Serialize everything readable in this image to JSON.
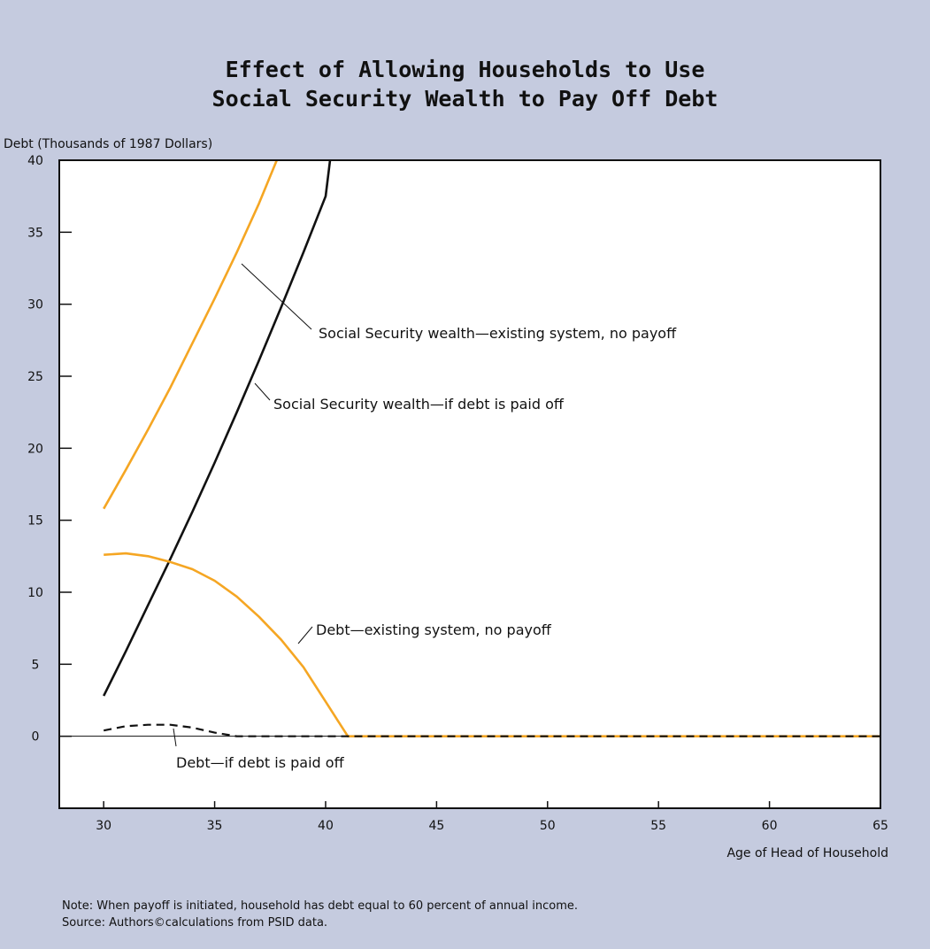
{
  "title_lines": [
    "Effect of Allowing Households to Use",
    "Social Security Wealth to Pay Off Debt"
  ],
  "notes": {
    "note": "Note: When payoff is initiated, household has debt equal to 60 percent of annual income.",
    "source": "Source: Authors©calculations from PSID data."
  },
  "colors": {
    "background": "#c5cbdf",
    "plot_area": "#ffffff",
    "orange": "#f5a623",
    "black": "#111111"
  },
  "chart_data": {
    "type": "line",
    "title": "Effect of Allowing Households to Use Social Security Wealth to Pay Off Debt",
    "ylabel": "Debt (Thousands of 1987 Dollars)",
    "xlabel": "Age of Head of Household",
    "xlim": [
      28,
      65
    ],
    "ylim": [
      -5,
      40
    ],
    "xticks": [
      30,
      35,
      40,
      45,
      50,
      55,
      60,
      65
    ],
    "yticks": [
      0,
      5,
      10,
      15,
      20,
      25,
      30,
      35,
      40
    ],
    "grid": false,
    "series": [
      {
        "name": "Social Security wealth—existing system, no payoff",
        "color": "#f5a623",
        "style": "solid",
        "x": [
          30,
          31,
          32,
          33,
          34,
          35,
          36,
          37,
          37.8
        ],
        "y": [
          15.8,
          18.5,
          21.3,
          24.2,
          27.3,
          30.4,
          33.6,
          37.0,
          40
        ]
      },
      {
        "name": "Social Security wealth—if debt is paid off",
        "color": "#111111",
        "style": "solid",
        "x": [
          30,
          31,
          32,
          33,
          34,
          35,
          36,
          37,
          38,
          39,
          40,
          40.2
        ],
        "y": [
          2.8,
          5.9,
          9.1,
          12.3,
          15.6,
          19.0,
          22.5,
          26.1,
          29.8,
          33.6,
          37.5,
          40
        ]
      },
      {
        "name": "Debt—existing system, no payoff",
        "color": "#f5a623",
        "style": "solid",
        "x": [
          30,
          31,
          32,
          33,
          34,
          35,
          36,
          37,
          38,
          39,
          40,
          41,
          42,
          45,
          50,
          55,
          60,
          65
        ],
        "y": [
          12.6,
          12.7,
          12.5,
          12.1,
          11.6,
          10.8,
          9.7,
          8.3,
          6.7,
          4.8,
          2.4,
          0.0,
          0.0,
          0.0,
          0.0,
          0.0,
          0.0,
          0.0
        ]
      },
      {
        "name": "Debt—if debt is paid off",
        "color": "#111111",
        "style": "dashed",
        "x": [
          30,
          31,
          32,
          33,
          34,
          35,
          36,
          37,
          40,
          45,
          50,
          55,
          60,
          65
        ],
        "y": [
          0.4,
          0.7,
          0.8,
          0.8,
          0.6,
          0.25,
          0.0,
          0.0,
          0.0,
          0.0,
          0.0,
          0.0,
          0.0,
          0.0
        ]
      }
    ],
    "annotations": [
      "Social Security wealth—existing system, no payoff",
      "Social Security wealth—if debt is paid off",
      "Debt—existing system, no payoff",
      "Debt—if debt is paid off"
    ]
  }
}
